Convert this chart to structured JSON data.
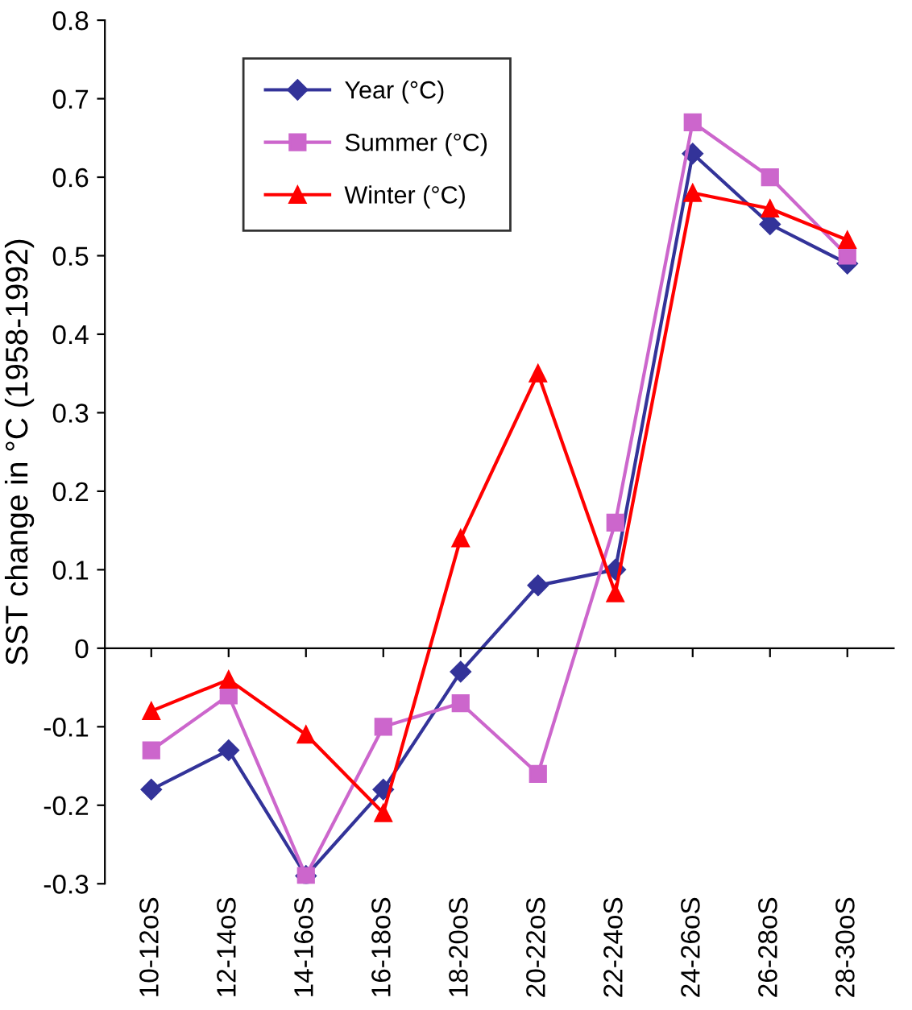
{
  "chart_data": {
    "type": "line",
    "ylabel": "SST change in °C (1958-1992)",
    "categories": [
      "10-12oS",
      "12-14oS",
      "14-16oS",
      "16-18oS",
      "18-20oS",
      "20-22oS",
      "22-24oS",
      "24-26oS",
      "26-28oS",
      "28-30oS"
    ],
    "series": [
      {
        "name": "Year (°C)",
        "color": "#333399",
        "marker": "diamond",
        "values": [
          -0.18,
          -0.13,
          -0.29,
          -0.18,
          -0.03,
          0.08,
          0.1,
          0.63,
          0.54,
          0.49
        ]
      },
      {
        "name": "Summer (°C)",
        "color": "#cc66cc",
        "marker": "square",
        "values": [
          -0.13,
          -0.06,
          -0.29,
          -0.1,
          -0.07,
          -0.16,
          0.16,
          0.67,
          0.6,
          0.5
        ]
      },
      {
        "name": "Winter (°C)",
        "color": "#ff0000",
        "marker": "triangle",
        "values": [
          -0.08,
          -0.04,
          -0.11,
          -0.21,
          0.14,
          0.35,
          0.07,
          0.58,
          0.56,
          0.52
        ]
      }
    ],
    "ylim": [
      -0.3,
      0.8
    ],
    "yticks": [
      -0.3,
      -0.2,
      -0.1,
      0,
      0.1,
      0.2,
      0.3,
      0.4,
      0.5,
      0.6,
      0.7,
      0.8
    ],
    "legend": "top left",
    "line_style": "solid"
  }
}
